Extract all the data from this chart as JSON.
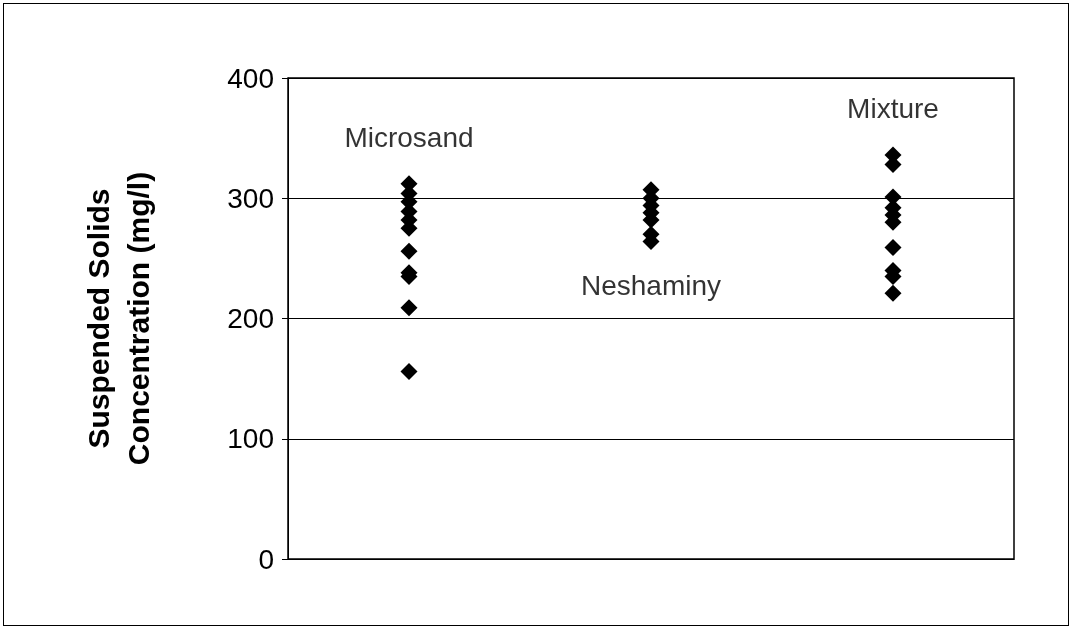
{
  "chart_data": {
    "type": "scatter",
    "ylabel": "Suspended Solids\nConcentration (mg/l)",
    "categories": [
      null,
      null,
      null
    ],
    "ylim": [
      0,
      400
    ],
    "yticks": [
      0,
      100,
      200,
      300,
      400
    ],
    "grid": "y",
    "marker": "diamond",
    "series": [
      {
        "color": "#000000",
        "values": [
          312,
          307,
          336
        ]
      },
      {
        "color": "#000000",
        "values": [
          304,
          300,
          328
        ]
      },
      {
        "color": "#000000",
        "values": [
          297,
          294,
          301
        ]
      },
      {
        "color": "#000000",
        "values": [
          289,
          288,
          292
        ]
      },
      {
        "color": "#000000",
        "values": [
          282,
          282,
          286
        ]
      },
      {
        "color": "#000000",
        "values": [
          275,
          270,
          280
        ]
      },
      {
        "color": "#000000",
        "values": [
          256,
          264,
          259
        ]
      },
      {
        "color": "#000000",
        "values": [
          238,
          null,
          240
        ]
      },
      {
        "color": "#000000",
        "values": [
          235,
          null,
          235
        ]
      },
      {
        "color": "#000000",
        "values": [
          209,
          null,
          221
        ]
      },
      {
        "color": "#000000",
        "values": [
          156,
          null,
          null
        ]
      }
    ],
    "annotations": [
      "Microsand",
      "Neshaminy",
      "Mixture"
    ]
  }
}
